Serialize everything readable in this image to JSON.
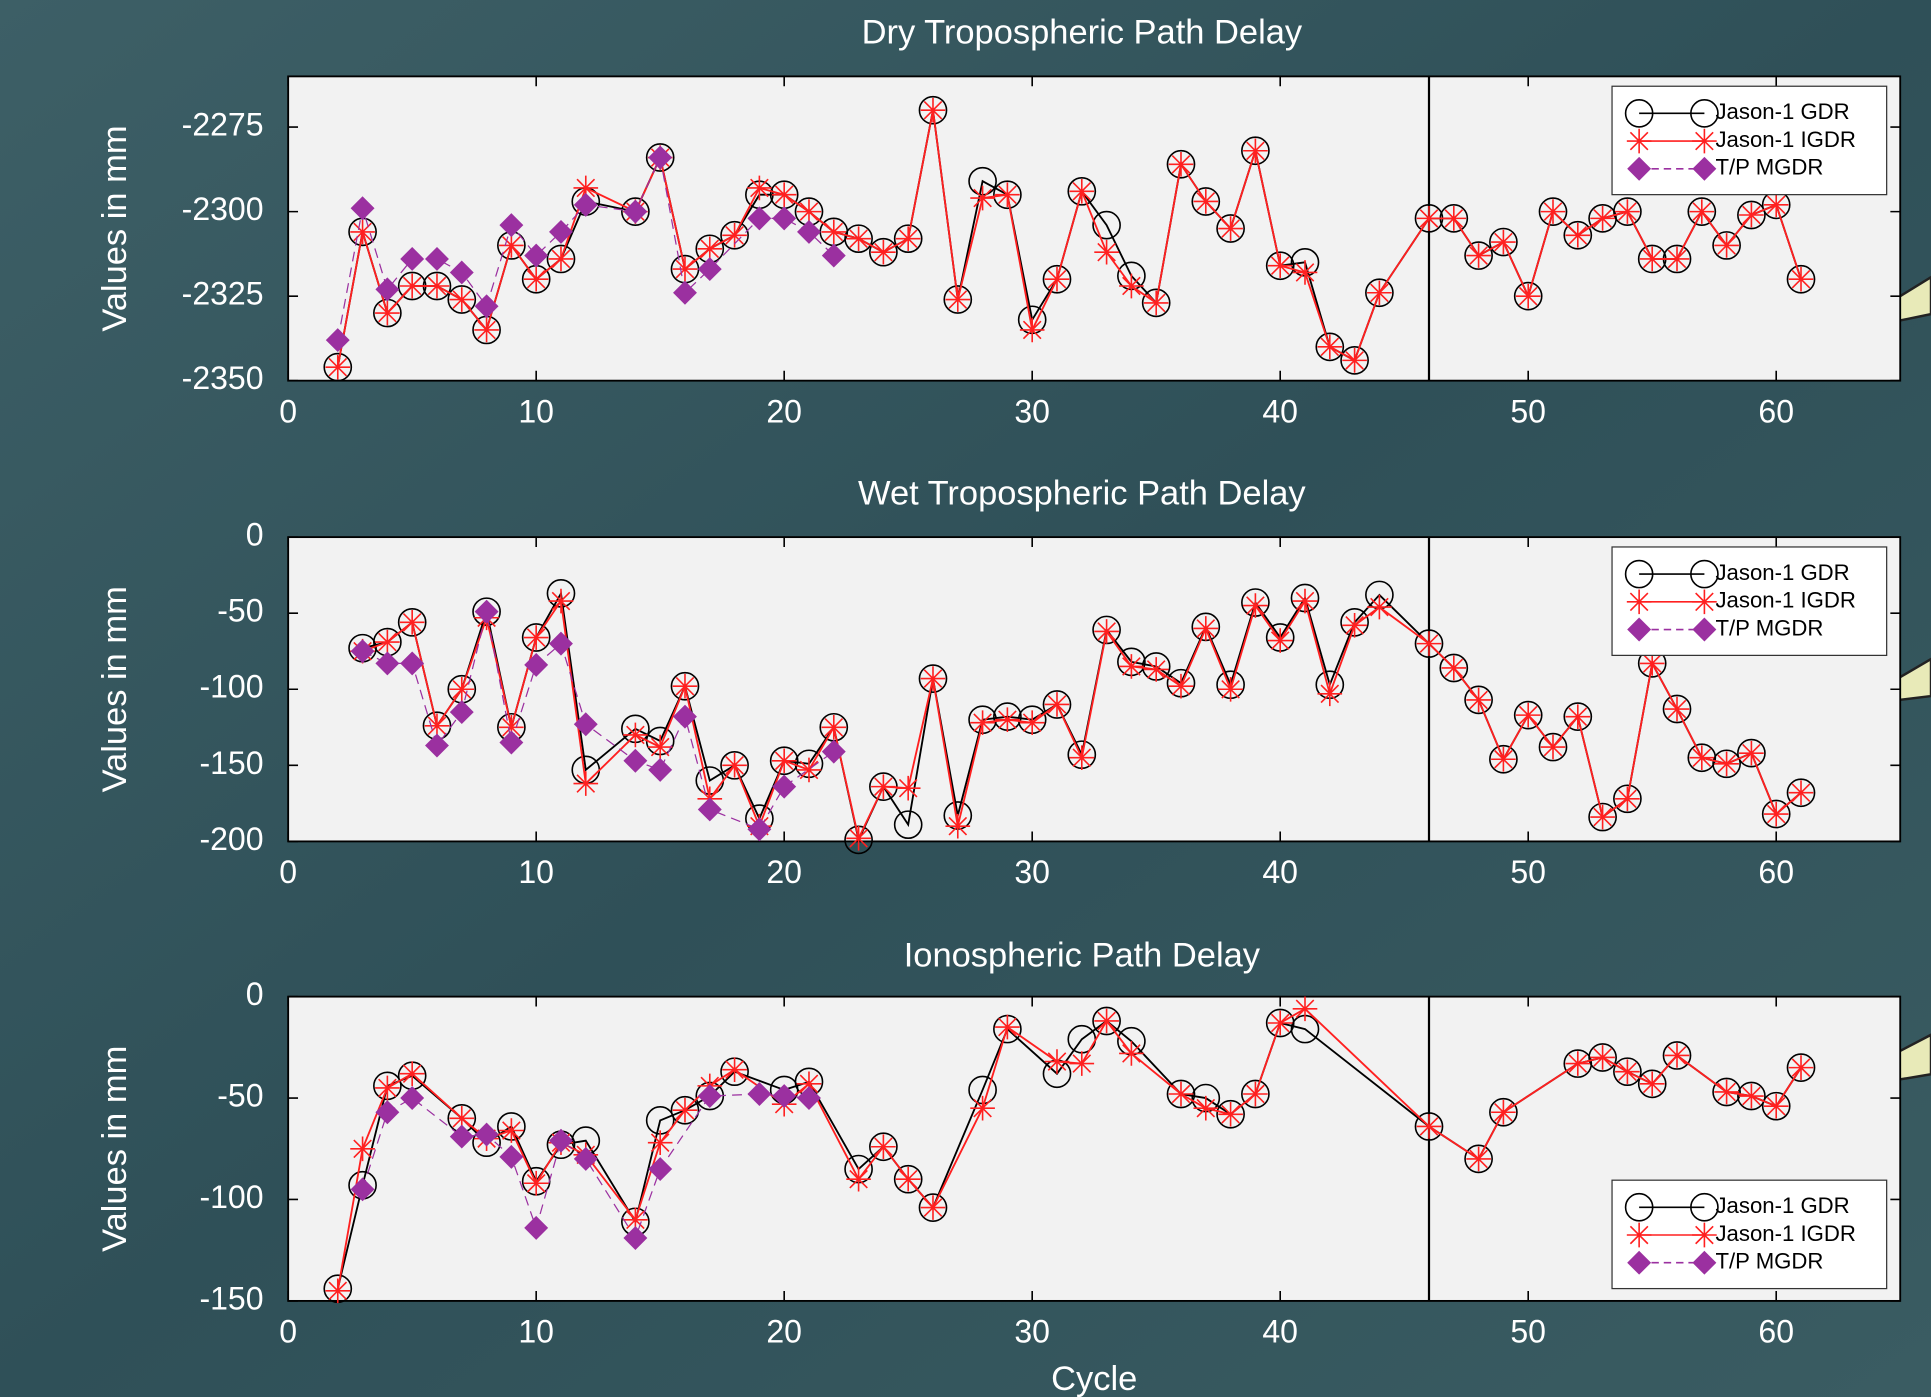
{
  "chart_data": [
    {
      "type": "line",
      "title": "Dry Tropospheric Path Delay",
      "ylabel": "Values in mm",
      "xlim": [
        0,
        65
      ],
      "xticks": [
        0,
        10,
        20,
        30,
        40,
        50,
        60
      ],
      "ylim": [
        -2350,
        -2260
      ],
      "yticks": [
        -2350,
        -2325,
        -2300,
        -2275
      ],
      "vline": 46,
      "legend": "upper right",
      "series": [
        {
          "name": "Jason-1 GDR",
          "color": "#000000",
          "marker": "circle",
          "linestyle": "solid",
          "x": [
            2,
            3,
            4,
            5,
            6,
            7,
            8,
            9,
            10,
            11,
            12,
            14,
            15,
            16,
            17,
            18,
            19,
            20,
            21,
            22,
            23,
            24,
            25,
            26,
            27,
            28,
            29,
            30,
            31,
            32,
            33,
            34,
            35,
            36,
            37,
            38,
            39,
            40,
            41,
            42,
            43,
            44,
            46,
            47,
            48,
            49,
            50,
            51,
            52,
            53,
            54,
            55,
            56,
            57,
            58,
            59,
            60,
            61
          ],
          "values": [
            -2346,
            -2306,
            -2330,
            -2322,
            -2322,
            -2326,
            -2335,
            -2310,
            -2320,
            -2314,
            -2297,
            -2300,
            -2284,
            -2317,
            -2311,
            -2307,
            -2295,
            -2295,
            -2300,
            -2306,
            -2308,
            -2312,
            -2308,
            -2270,
            -2326,
            -2291,
            -2295,
            -2332,
            -2320,
            -2294,
            -2304,
            -2319,
            -2327,
            -2286,
            -2297,
            -2305,
            -2282,
            -2316,
            -2315,
            -2340,
            -2344,
            -2324,
            -2302,
            -2302,
            -2313,
            -2309,
            -2325,
            -2300,
            -2307,
            -2302,
            -2300,
            -2314,
            -2314,
            -2300,
            -2310,
            -2301,
            -2298,
            -2320
          ]
        },
        {
          "name": "Jason-1 IGDR",
          "color": "#ff2020",
          "marker": "asterisk",
          "linestyle": "solid",
          "x": [
            2,
            3,
            4,
            5,
            6,
            7,
            8,
            9,
            10,
            11,
            12,
            14,
            15,
            16,
            17,
            18,
            19,
            20,
            21,
            22,
            23,
            24,
            25,
            26,
            27,
            28,
            29,
            30,
            31,
            32,
            33,
            34,
            35,
            36,
            37,
            38,
            39,
            40,
            41,
            42,
            43,
            44,
            46,
            47,
            48,
            49,
            50,
            51,
            52,
            53,
            54,
            55,
            56,
            57,
            58,
            59,
            60,
            61
          ],
          "values": [
            -2346,
            -2306,
            -2330,
            -2322,
            -2322,
            -2326,
            -2335,
            -2310,
            -2320,
            -2314,
            -2293,
            -2300,
            -2284,
            -2317,
            -2311,
            -2307,
            -2293,
            -2295,
            -2300,
            -2306,
            -2308,
            -2312,
            -2308,
            -2270,
            -2326,
            -2296,
            -2295,
            -2335,
            -2320,
            -2294,
            -2312,
            -2322,
            -2327,
            -2286,
            -2297,
            -2305,
            -2282,
            -2316,
            -2318,
            -2340,
            -2344,
            -2324,
            -2302,
            -2302,
            -2313,
            -2309,
            -2325,
            -2300,
            -2307,
            -2302,
            -2300,
            -2314,
            -2314,
            -2300,
            -2310,
            -2301,
            -2298,
            -2320
          ]
        },
        {
          "name": "T/P MGDR",
          "color": "#9b30a0",
          "marker": "diamond",
          "linestyle": "dashed",
          "x": [
            2,
            3,
            4,
            5,
            6,
            7,
            8,
            9,
            10,
            11,
            12,
            14,
            15,
            16,
            17,
            19,
            20,
            21,
            22
          ],
          "values": [
            -2338,
            -2299,
            -2323,
            -2314,
            -2314,
            -2318,
            -2328,
            -2304,
            -2313,
            -2306,
            -2298,
            -2300,
            -2284,
            -2324,
            -2317,
            -2302,
            -2302,
            -2306,
            -2313
          ]
        }
      ]
    },
    {
      "type": "line",
      "title": "Wet Tropospheric Path Delay",
      "ylabel": "Values in mm",
      "xlim": [
        0,
        65
      ],
      "xticks": [
        0,
        10,
        20,
        30,
        40,
        50,
        60
      ],
      "ylim": [
        -200,
        0
      ],
      "yticks": [
        -200,
        -150,
        -100,
        -50,
        0
      ],
      "vline": 46,
      "legend": "upper right",
      "series": [
        {
          "name": "Jason-1 GDR",
          "color": "#000000",
          "marker": "circle",
          "linestyle": "solid",
          "x": [
            3,
            4,
            5,
            6,
            7,
            8,
            9,
            10,
            11,
            12,
            14,
            15,
            16,
            17,
            18,
            19,
            20,
            21,
            22,
            23,
            24,
            25,
            26,
            27,
            28,
            29,
            30,
            31,
            32,
            33,
            34,
            35,
            36,
            37,
            38,
            39,
            40,
            41,
            42,
            43,
            44,
            46,
            47,
            48,
            49,
            50,
            51,
            52,
            53,
            54,
            55,
            56,
            57,
            58,
            59,
            60,
            61
          ],
          "values": [
            -73,
            -69,
            -56,
            -124,
            -100,
            -49,
            -125,
            -66,
            -37,
            -153,
            -126,
            -134,
            -98,
            -160,
            -150,
            -185,
            -147,
            -149,
            -125,
            -199,
            -164,
            -189,
            -93,
            -183,
            -120,
            -118,
            -120,
            -110,
            -143,
            -61,
            -82,
            -85,
            -96,
            -59,
            -97,
            -43,
            -66,
            -40,
            -97,
            -56,
            -38,
            -70,
            -86,
            -107,
            -146,
            -117,
            -138,
            -118,
            -184,
            -172,
            -83,
            -113,
            -145,
            -149,
            -142,
            -182,
            -168
          ]
        },
        {
          "name": "Jason-1 IGDR",
          "color": "#ff2020",
          "marker": "asterisk",
          "linestyle": "solid",
          "x": [
            3,
            4,
            5,
            6,
            7,
            8,
            9,
            10,
            11,
            12,
            14,
            15,
            16,
            17,
            18,
            19,
            20,
            21,
            22,
            23,
            24,
            25,
            26,
            27,
            28,
            29,
            30,
            31,
            32,
            33,
            34,
            35,
            36,
            37,
            38,
            39,
            40,
            41,
            42,
            43,
            44,
            46,
            47,
            48,
            49,
            50,
            51,
            52,
            53,
            54,
            55,
            56,
            57,
            58,
            59,
            60,
            61
          ],
          "values": [
            -75,
            -69,
            -56,
            -124,
            -100,
            -53,
            -125,
            -66,
            -42,
            -162,
            -130,
            -138,
            -98,
            -172,
            -150,
            -190,
            -147,
            -153,
            -125,
            -198,
            -164,
            -165,
            -93,
            -190,
            -122,
            -120,
            -122,
            -110,
            -145,
            -62,
            -85,
            -87,
            -98,
            -60,
            -100,
            -45,
            -68,
            -42,
            -103,
            -58,
            -46,
            -70,
            -86,
            -107,
            -146,
            -117,
            -138,
            -118,
            -184,
            -172,
            -83,
            -113,
            -145,
            -149,
            -142,
            -182,
            -168
          ]
        },
        {
          "name": "T/P MGDR",
          "color": "#9b30a0",
          "marker": "diamond",
          "linestyle": "dashed",
          "x": [
            3,
            4,
            5,
            6,
            7,
            8,
            9,
            10,
            11,
            12,
            14,
            15,
            16,
            17,
            19,
            20,
            22
          ],
          "values": [
            -75,
            -83,
            -83,
            -137,
            -115,
            -49,
            -135,
            -84,
            -70,
            -123,
            -147,
            -153,
            -118,
            -179,
            -192,
            -164,
            -141
          ]
        }
      ]
    },
    {
      "type": "line",
      "title": "Ionospheric Path Delay",
      "ylabel": "Values in mm",
      "xlabel": "Cycle",
      "xlim": [
        0,
        65
      ],
      "xticks": [
        0,
        10,
        20,
        30,
        40,
        50,
        60
      ],
      "ylim": [
        -150,
        0
      ],
      "yticks": [
        -150,
        -100,
        -50,
        0
      ],
      "vline": 46,
      "legend": "lower right",
      "series": [
        {
          "name": "Jason-1 GDR",
          "color": "#000000",
          "marker": "circle",
          "linestyle": "solid",
          "x": [
            2,
            3,
            4,
            5,
            7,
            8,
            9,
            10,
            11,
            12,
            14,
            15,
            16,
            17,
            18,
            20,
            21,
            23,
            24,
            25,
            26,
            28,
            29,
            31,
            32,
            33,
            34,
            36,
            37,
            38,
            39,
            40,
            41,
            46,
            48,
            49,
            52,
            53,
            54,
            55,
            56,
            58,
            59,
            60,
            61
          ],
          "values": [
            -144,
            -93,
            -44,
            -39,
            -60,
            -72,
            -64,
            -91,
            -73,
            -71,
            -111,
            -61,
            -56,
            -49,
            -37,
            -46,
            -42,
            -85,
            -74,
            -90,
            -104,
            -46,
            -16,
            -38,
            -21,
            -12,
            -22,
            -48,
            -50,
            -58,
            -48,
            -13,
            -16,
            -64,
            -80,
            -57,
            -33,
            -30,
            -37,
            -43,
            -29,
            -47,
            -49,
            -54,
            -35
          ]
        },
        {
          "name": "Jason-1 IGDR",
          "color": "#ff2020",
          "marker": "asterisk",
          "linestyle": "solid",
          "x": [
            2,
            3,
            4,
            5,
            7,
            8,
            9,
            10,
            11,
            12,
            14,
            15,
            16,
            17,
            18,
            20,
            21,
            23,
            24,
            25,
            26,
            28,
            29,
            31,
            32,
            33,
            34,
            36,
            37,
            38,
            39,
            40,
            41,
            46,
            48,
            49,
            52,
            53,
            54,
            55,
            56,
            58,
            59,
            60,
            61
          ],
          "values": [
            -145,
            -75,
            -45,
            -38,
            -60,
            -70,
            -66,
            -92,
            -72,
            -78,
            -110,
            -72,
            -56,
            -44,
            -36,
            -53,
            -43,
            -90,
            -74,
            -90,
            -104,
            -55,
            -15,
            -32,
            -33,
            -12,
            -28,
            -48,
            -55,
            -58,
            -48,
            -13,
            -6,
            -64,
            -80,
            -57,
            -33,
            -30,
            -37,
            -43,
            -29,
            -47,
            -49,
            -54,
            -35
          ]
        },
        {
          "name": "T/P MGDR",
          "color": "#9b30a0",
          "marker": "diamond",
          "linestyle": "dashed",
          "x": [
            3,
            4,
            5,
            7,
            8,
            9,
            10,
            11,
            12,
            14,
            15,
            17,
            19,
            20,
            21
          ],
          "values": [
            -95,
            -57,
            -50,
            -69,
            -68,
            -79,
            -114,
            -71,
            -80,
            -119,
            -85,
            -49,
            -48,
            -49,
            -50
          ]
        }
      ]
    }
  ]
}
